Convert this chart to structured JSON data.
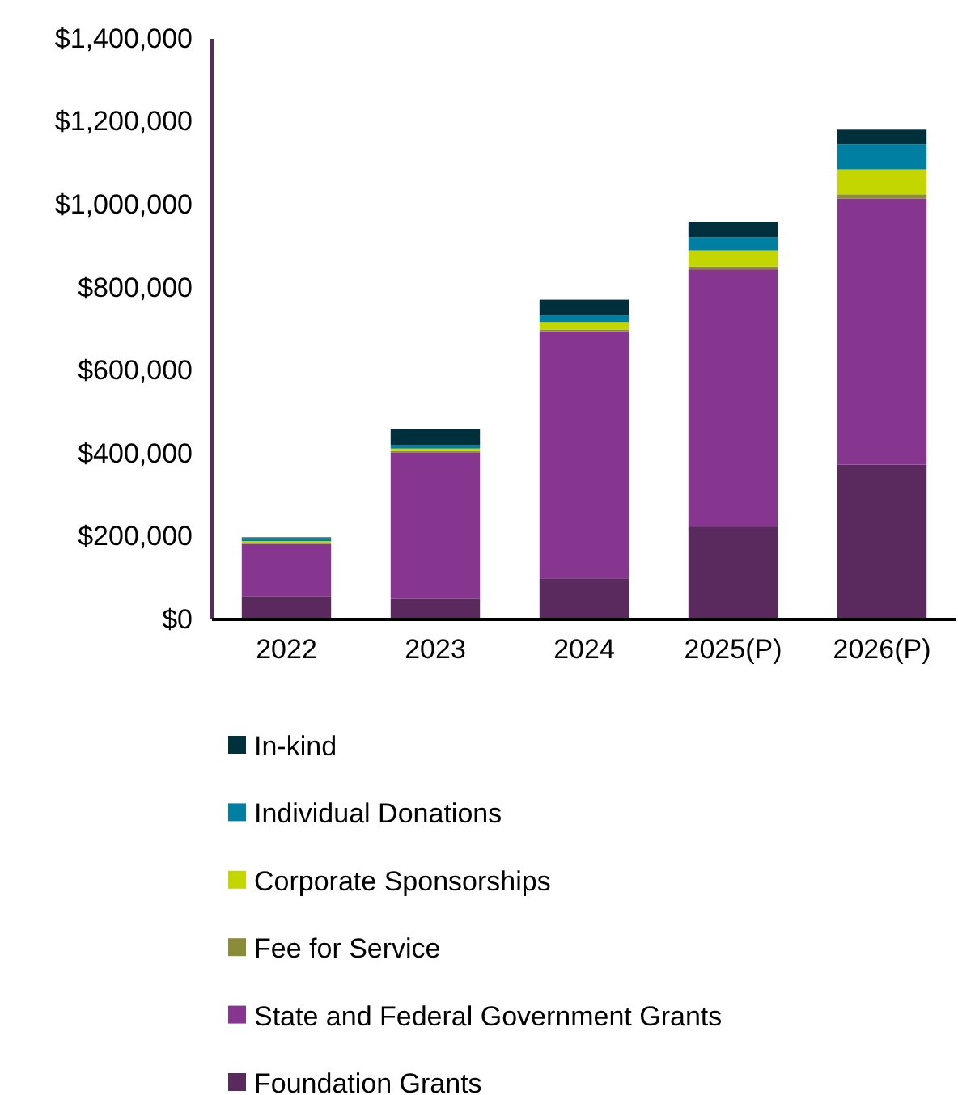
{
  "chart_data": {
    "type": "bar",
    "stacked": true,
    "categories": [
      "2022",
      "2023",
      "2024",
      "2025(P)",
      "2026(P)"
    ],
    "series": [
      {
        "name": "Foundation Grants",
        "color": "#5a2a5e",
        "values": [
          56000,
          50000,
          99000,
          224000,
          373000
        ]
      },
      {
        "name": "State and Federal Government Grants",
        "color": "#86368f",
        "values": [
          126000,
          353000,
          596000,
          620000,
          642000
        ]
      },
      {
        "name": "Fee for Service",
        "color": "#8b8b3a",
        "values": [
          3000,
          3000,
          4000,
          7000,
          10000
        ]
      },
      {
        "name": "Corporate Sponsorships",
        "color": "#c4d600",
        "values": [
          4000,
          6000,
          18000,
          39000,
          60000
        ]
      },
      {
        "name": "Individual Donations",
        "color": "#007fa3",
        "values": [
          7000,
          8000,
          16000,
          32000,
          61000
        ]
      },
      {
        "name": "In-kind",
        "color": "#00303c",
        "values": [
          2000,
          39000,
          38000,
          37000,
          35000
        ]
      }
    ],
    "ylim": [
      0,
      1400000
    ],
    "yticks": [
      {
        "value": 0,
        "label": "$0"
      },
      {
        "value": 200000,
        "label": "$200,000"
      },
      {
        "value": 400000,
        "label": "$400,000"
      },
      {
        "value": 600000,
        "label": "$600,000"
      },
      {
        "value": 800000,
        "label": "$800,000"
      },
      {
        "value": 1000000,
        "label": "$1,000,000"
      },
      {
        "value": 1200000,
        "label": "$1,200,000"
      },
      {
        "value": 1400000,
        "label": "$1,400,000"
      }
    ],
    "legend": "bottom"
  }
}
